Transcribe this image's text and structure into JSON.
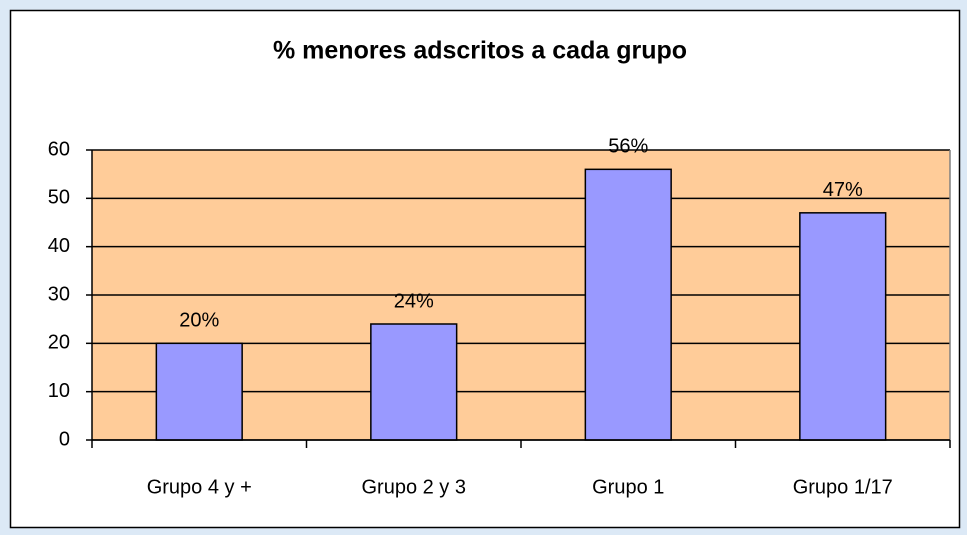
{
  "chart_data": {
    "type": "bar",
    "title": "% menores adscritos a cada grupo",
    "categories": [
      "Grupo 4 y +",
      "Grupo 2 y 3",
      "Grupo 1",
      "Grupo 1/17"
    ],
    "values": [
      20,
      24,
      56,
      47
    ],
    "value_labels": [
      "20%",
      "24%",
      "56%",
      "47%"
    ],
    "color": "#9999ff",
    "plot_background": "#ffcc99",
    "ylim": [
      0,
      60
    ],
    "yticks": [
      0,
      10,
      20,
      30,
      40,
      50,
      60
    ],
    "grid": true
  }
}
